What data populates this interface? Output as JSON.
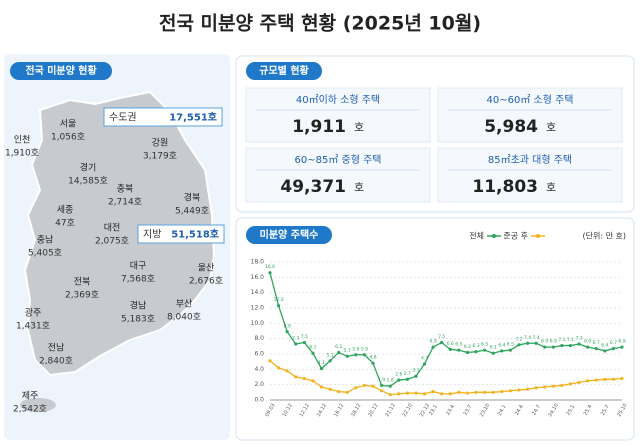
{
  "title": "전국 미분양 주택 현황 (2025년 10월)",
  "map": {
    "heading": "전국 미분양 현황",
    "regions": [
      {
        "name": "인천",
        "value": "1,910호"
      },
      {
        "name": "서울",
        "value": "1,056호"
      },
      {
        "name": "경기",
        "value": "14,585호"
      },
      {
        "name": "강원",
        "value": "3,179호"
      },
      {
        "name": "충북",
        "value": "2,714호"
      },
      {
        "name": "세종",
        "value": "47호"
      },
      {
        "name": "충남",
        "value": "5,405호"
      },
      {
        "name": "대전",
        "value": "2,075호"
      },
      {
        "name": "경북",
        "value": "5,449호"
      },
      {
        "name": "대구",
        "value": "7,568호"
      },
      {
        "name": "전북",
        "value": "2,369호"
      },
      {
        "name": "울산",
        "value": "2,676호"
      },
      {
        "name": "경남",
        "value": "5,183호"
      },
      {
        "name": "부산",
        "value": "8,040호"
      },
      {
        "name": "광주",
        "value": "1,431호"
      },
      {
        "name": "전남",
        "value": "2,840호"
      },
      {
        "name": "제주",
        "value": "2,542호"
      }
    ],
    "callouts": [
      {
        "name": "수도권",
        "value": "17,551호"
      },
      {
        "name": "지방",
        "value": "51,518호"
      }
    ]
  },
  "size_cards": {
    "heading": "규모별 현황",
    "cards": [
      {
        "label": "40㎡이하 소형 주택",
        "value": "1,911",
        "unit": "호"
      },
      {
        "label": "40~60㎡ 소형 주택",
        "value": "5,984",
        "unit": "호"
      },
      {
        "label": "60~85㎡ 중형 주택",
        "value": "49,371",
        "unit": "호"
      },
      {
        "label": "85㎡초과 대형 주택",
        "value": "11,803",
        "unit": "호"
      }
    ]
  },
  "chart_data": {
    "type": "line",
    "title": "미분양 주택수",
    "unit_note": "(단위: 만 호)",
    "categories": [
      "09.03",
      null,
      "10.12",
      null,
      "12.12",
      null,
      "14.12",
      null,
      "16.12",
      null,
      "18.12",
      null,
      "20.12",
      null,
      "21.12",
      null,
      "22.10",
      null,
      "22.12",
      "23.1",
      null,
      "23.4",
      null,
      "23.7",
      null,
      "23.10",
      null,
      "24.1",
      null,
      "24.4",
      null,
      "24.7",
      null,
      "24.10",
      null,
      "25.1",
      null,
      "25.4",
      null,
      "25.7",
      null,
      "25.10"
    ],
    "series": [
      {
        "name": "전체",
        "color": "#2ea55c",
        "values": [
          16.6,
          12.3,
          8.9,
          7.3,
          7.5,
          6.1,
          4.1,
          5.1,
          6.2,
          5.7,
          5.9,
          5.9,
          4.8,
          1.9,
          1.8,
          2.6,
          2.7,
          3.1,
          4.7,
          6.9,
          7.5,
          6.6,
          6.5,
          6.2,
          6.3,
          6.5,
          6.1,
          6.4,
          6.5,
          7.2,
          7.4,
          7.4,
          6.9,
          6.9,
          7.1,
          7.1,
          7.3,
          6.9,
          6.7,
          6.4,
          6.7,
          6.9
        ]
      },
      {
        "name": "준공 후",
        "color": "#f2b31f",
        "values": [
          5.1,
          4.2,
          3.8,
          3.0,
          2.8,
          2.5,
          1.7,
          1.4,
          1.1,
          1.0,
          1.6,
          1.9,
          1.8,
          1.2,
          0.7,
          0.8,
          0.9,
          0.9,
          0.8,
          1.1,
          0.8,
          0.8,
          1.0,
          0.9,
          1.0,
          1.0,
          1.0,
          1.1,
          1.2,
          1.3,
          1.4,
          1.6,
          1.7,
          1.8,
          1.9,
          2.1,
          2.3,
          2.5,
          2.6,
          2.7,
          2.7,
          2.8
        ]
      }
    ],
    "ylim": [
      0,
      18
    ],
    "yticks": [
      {
        "value": 0,
        "label": "0.0"
      },
      {
        "value": 2,
        "label": "2.0"
      },
      {
        "value": 4,
        "label": "4.0"
      },
      {
        "value": 6,
        "label": "6.0"
      },
      {
        "value": 8,
        "label": "8.0"
      },
      {
        "value": 10,
        "label": "10.0"
      },
      {
        "value": 12,
        "label": "12.0"
      },
      {
        "value": 14,
        "label": "14.0"
      },
      {
        "value": 16,
        "label": "16.0"
      },
      {
        "value": 18,
        "label": "18.0"
      }
    ],
    "grid": true
  }
}
